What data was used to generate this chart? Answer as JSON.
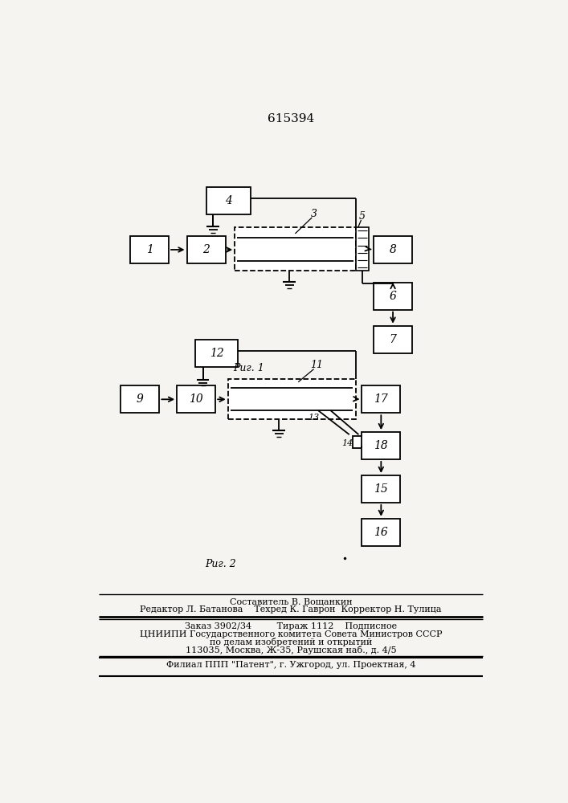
{
  "title": "615394",
  "fig1_label": "Риг. 1",
  "fig2_label": "Риг. 2",
  "bg_color": "#f5f4f0",
  "footer_lines_top": [
    "Составитель В. Вощанкин",
    "Редактор Л. Батанова    Техред К. Гаврон  Корректор Н. Тулица"
  ],
  "footer_lines_bot": [
    "Заказ 3902/34         Тираж 1112    Подписное",
    "ЦНИИПИ Государственного комитета Совета Министров СССР",
    "по делам изобретений и открытий",
    "113035, Москва, Ж-35, Раушская наб., д. 4/5"
  ],
  "footer_patent": "Филиал ППП \"Патент\", г. Ужгород, ул. Проектная, 4"
}
